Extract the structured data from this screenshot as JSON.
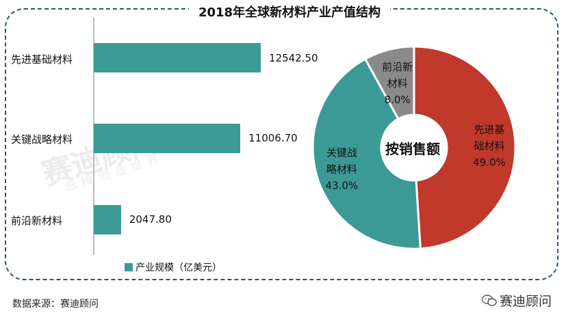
{
  "watermark": {
    "main": "赛迪顾问",
    "sub": "思维创造世界"
  },
  "source": "数据来源：赛迪顾问",
  "brand": "赛迪顾问",
  "brand_icon": "wechat-icon",
  "colors": {
    "bar": "#3b9a96",
    "pie": [
      "#c0392b",
      "#3b9a96",
      "#8a8a8a"
    ]
  },
  "chart_data": [
    {
      "type": "bar",
      "title": "2018年全球新材料产业产值结构",
      "categories": [
        "先进基础材料",
        "关键战略材料",
        "前沿新材料"
      ],
      "series": [
        {
          "name": "产业规模（亿美元）",
          "values": [
            12542.5,
            11006.7,
            2047.8
          ]
        }
      ],
      "value_labels": [
        "12542.50",
        "11006.70",
        "2047.80"
      ],
      "legend": "bottom"
    },
    {
      "type": "pie",
      "center_label": "按销售额",
      "slices": [
        {
          "label": "先进基础材料",
          "label_lines": [
            "先进基",
            "础材料"
          ],
          "value": 49.0,
          "pct_text": "49.0%"
        },
        {
          "label": "关键战略材料",
          "label_lines": [
            "关键战",
            "略材料"
          ],
          "value": 43.0,
          "pct_text": "43.0%"
        },
        {
          "label": "前沿新材料",
          "label_lines": [
            "前沿新",
            "材料"
          ],
          "value": 8.0,
          "pct_text": "8.0%"
        }
      ]
    }
  ]
}
